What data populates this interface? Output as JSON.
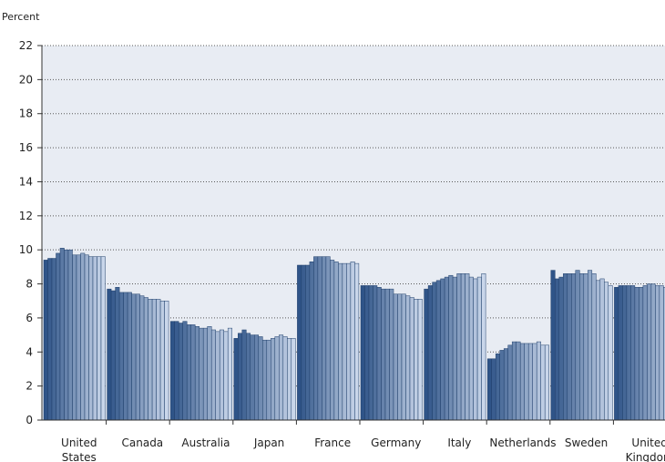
{
  "chart_data": {
    "type": "bar",
    "ylabel": "Percent",
    "ylim": [
      0,
      22
    ],
    "yticks": [
      "0",
      "2",
      "4",
      "6",
      "8",
      "10",
      "12",
      "14",
      "16",
      "18",
      "20",
      "22"
    ],
    "grid": true,
    "plot_background": "#e8ecf3",
    "bar_color_dark": "#2f5488",
    "bar_color_light": "#c9d6ea",
    "categories": [
      {
        "name": "United States",
        "lines": [
          "United",
          "States"
        ],
        "values": [
          9.4,
          9.5,
          9.5,
          9.8,
          10.1,
          10.0,
          10.0,
          9.7,
          9.7,
          9.8,
          9.7,
          9.6,
          9.6,
          9.6,
          9.6
        ]
      },
      {
        "name": "Canada",
        "lines": [
          "Canada"
        ],
        "values": [
          7.7,
          7.6,
          7.8,
          7.5,
          7.5,
          7.5,
          7.4,
          7.4,
          7.3,
          7.2,
          7.1,
          7.1,
          7.1,
          7.0,
          7.0
        ]
      },
      {
        "name": "Australia",
        "lines": [
          "Australia"
        ],
        "values": [
          5.8,
          5.8,
          5.7,
          5.8,
          5.6,
          5.6,
          5.5,
          5.4,
          5.4,
          5.5,
          5.3,
          5.2,
          5.3,
          5.2,
          5.4
        ]
      },
      {
        "name": "Japan",
        "lines": [
          "Japan"
        ],
        "values": [
          4.8,
          5.1,
          5.3,
          5.1,
          5.0,
          5.0,
          4.9,
          4.7,
          4.7,
          4.8,
          4.9,
          5.0,
          4.9,
          4.8,
          4.8
        ]
      },
      {
        "name": "France",
        "lines": [
          "France"
        ],
        "values": [
          9.1,
          9.1,
          9.1,
          9.3,
          9.6,
          9.6,
          9.6,
          9.6,
          9.4,
          9.3,
          9.2,
          9.2,
          9.2,
          9.3,
          9.2
        ]
      },
      {
        "name": "Germany",
        "lines": [
          "Germany"
        ],
        "values": [
          7.9,
          7.9,
          7.9,
          7.9,
          7.8,
          7.7,
          7.7,
          7.7,
          7.4,
          7.4,
          7.4,
          7.3,
          7.2,
          7.1,
          7.1
        ]
      },
      {
        "name": "Italy",
        "lines": [
          "Italy"
        ],
        "values": [
          7.7,
          7.9,
          8.1,
          8.2,
          8.3,
          8.4,
          8.5,
          8.4,
          8.6,
          8.6,
          8.6,
          8.4,
          8.3,
          8.4,
          8.6
        ]
      },
      {
        "name": "Netherlands",
        "lines": [
          "Netherlands"
        ],
        "values": [
          3.6,
          3.6,
          3.9,
          4.1,
          4.2,
          4.4,
          4.6,
          4.6,
          4.5,
          4.5,
          4.5,
          4.5,
          4.6,
          4.4,
          4.4
        ]
      },
      {
        "name": "Sweden",
        "lines": [
          "Sweden"
        ],
        "values": [
          8.8,
          8.3,
          8.4,
          8.6,
          8.6,
          8.6,
          8.8,
          8.6,
          8.6,
          8.8,
          8.6,
          8.2,
          8.3,
          8.1,
          7.9
        ]
      },
      {
        "name": "United Kingdom",
        "lines": [
          "United",
          "Kingdom"
        ],
        "values": [
          7.8,
          7.9,
          7.9,
          7.9,
          7.9,
          7.8,
          7.8,
          7.9,
          8.0,
          8.0,
          7.9,
          7.9,
          7.8,
          7.8,
          7.8
        ]
      }
    ]
  }
}
